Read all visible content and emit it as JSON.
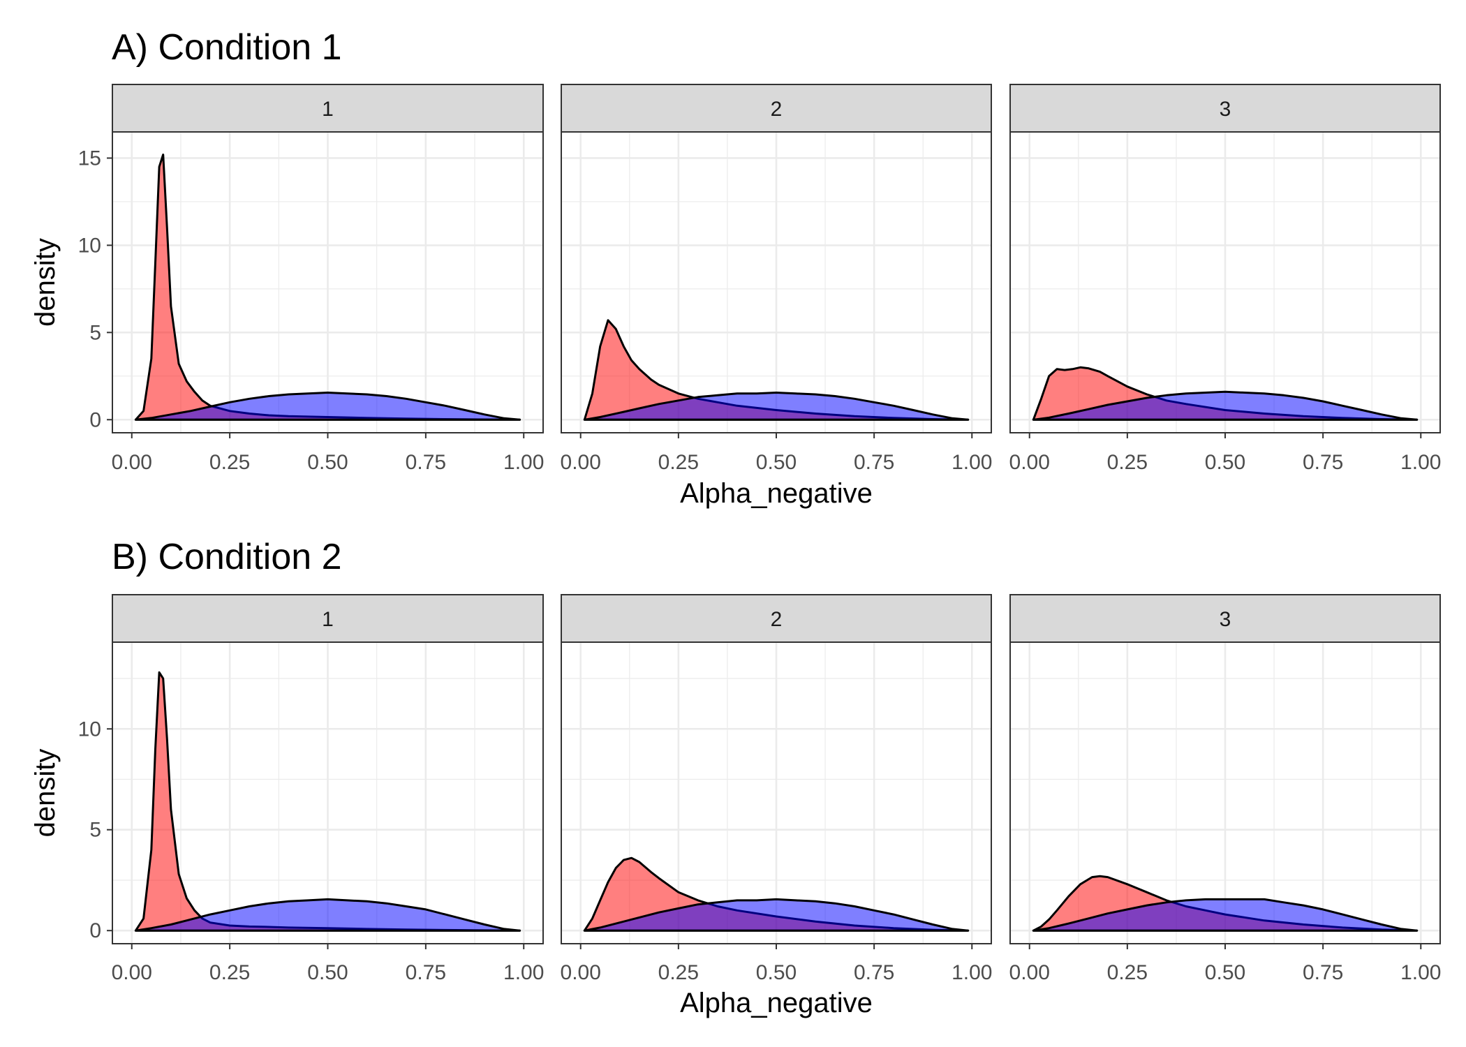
{
  "colors": {
    "red_fill": "#ff0000",
    "blue_fill": "#0000ff",
    "fill_opacity": 0.5,
    "outline": "#000000",
    "strip_bg": "#d9d9d9",
    "grid": "#ebebeb",
    "panel_border": "#333333"
  },
  "chart_data": [
    {
      "type": "area",
      "title": "A) Condition 1",
      "xlabel": "Alpha_negative",
      "ylabel": "density",
      "xlim": [
        0,
        1
      ],
      "ylim": [
        -0.75,
        16.5
      ],
      "x_ticks": [
        0,
        0.25,
        0.5,
        0.75,
        1
      ],
      "x_tick_labels": [
        "0.00",
        "0.25",
        "0.50",
        "0.75",
        "1.00"
      ],
      "y_ticks": [
        0,
        5,
        10,
        15
      ],
      "y_tick_labels": [
        "0",
        "5",
        "10",
        "15"
      ],
      "grid": true,
      "facets": [
        {
          "label": "1",
          "series": [
            {
              "color": "#ff0000",
              "x": [
                0.01,
                0.03,
                0.05,
                0.06,
                0.07,
                0.08,
                0.09,
                0.1,
                0.12,
                0.14,
                0.16,
                0.18,
                0.2,
                0.25,
                0.3,
                0.35,
                0.4,
                0.5,
                0.6,
                0.7,
                0.8,
                0.9,
                0.99
              ],
              "y": [
                0,
                0.5,
                3.5,
                9,
                14.5,
                15.2,
                11,
                6.5,
                3.2,
                2.2,
                1.6,
                1.1,
                0.8,
                0.5,
                0.35,
                0.25,
                0.2,
                0.15,
                0.1,
                0.06,
                0.03,
                0.01,
                0
              ]
            },
            {
              "color": "#0000ff",
              "x": [
                0.01,
                0.05,
                0.1,
                0.15,
                0.2,
                0.25,
                0.3,
                0.35,
                0.4,
                0.45,
                0.5,
                0.55,
                0.6,
                0.65,
                0.7,
                0.75,
                0.8,
                0.85,
                0.9,
                0.95,
                0.99
              ],
              "y": [
                0,
                0.1,
                0.3,
                0.5,
                0.75,
                1.0,
                1.2,
                1.35,
                1.45,
                1.5,
                1.55,
                1.5,
                1.45,
                1.35,
                1.2,
                1.0,
                0.8,
                0.55,
                0.3,
                0.08,
                0
              ]
            }
          ]
        },
        {
          "label": "2",
          "series": [
            {
              "color": "#ff0000",
              "x": [
                0.01,
                0.03,
                0.05,
                0.07,
                0.09,
                0.11,
                0.13,
                0.15,
                0.18,
                0.2,
                0.25,
                0.3,
                0.35,
                0.4,
                0.5,
                0.6,
                0.7,
                0.8,
                0.9,
                0.99
              ],
              "y": [
                0,
                1.5,
                4.2,
                5.7,
                5.2,
                4.2,
                3.4,
                2.9,
                2.3,
                2.0,
                1.5,
                1.2,
                1.0,
                0.8,
                0.55,
                0.35,
                0.2,
                0.1,
                0.03,
                0
              ]
            },
            {
              "color": "#0000ff",
              "x": [
                0.01,
                0.05,
                0.1,
                0.15,
                0.2,
                0.25,
                0.3,
                0.35,
                0.4,
                0.45,
                0.5,
                0.55,
                0.6,
                0.65,
                0.7,
                0.75,
                0.8,
                0.85,
                0.9,
                0.95,
                0.99
              ],
              "y": [
                0,
                0.15,
                0.4,
                0.65,
                0.9,
                1.1,
                1.3,
                1.4,
                1.5,
                1.5,
                1.55,
                1.5,
                1.45,
                1.35,
                1.2,
                1.0,
                0.8,
                0.55,
                0.3,
                0.08,
                0
              ]
            }
          ]
        },
        {
          "label": "3",
          "series": [
            {
              "color": "#ff0000",
              "x": [
                0.01,
                0.03,
                0.05,
                0.07,
                0.09,
                0.11,
                0.13,
                0.15,
                0.18,
                0.2,
                0.25,
                0.3,
                0.35,
                0.4,
                0.5,
                0.6,
                0.7,
                0.8,
                0.9,
                0.99
              ],
              "y": [
                0,
                1.2,
                2.5,
                2.9,
                2.85,
                2.9,
                3.0,
                2.95,
                2.75,
                2.5,
                1.9,
                1.45,
                1.1,
                0.9,
                0.55,
                0.35,
                0.2,
                0.1,
                0.03,
                0
              ]
            },
            {
              "color": "#0000ff",
              "x": [
                0.01,
                0.05,
                0.1,
                0.15,
                0.2,
                0.25,
                0.3,
                0.35,
                0.4,
                0.45,
                0.5,
                0.55,
                0.6,
                0.65,
                0.7,
                0.75,
                0.8,
                0.85,
                0.9,
                0.95,
                0.99
              ],
              "y": [
                0,
                0.12,
                0.35,
                0.6,
                0.85,
                1.05,
                1.25,
                1.4,
                1.5,
                1.55,
                1.6,
                1.55,
                1.5,
                1.4,
                1.25,
                1.05,
                0.8,
                0.55,
                0.3,
                0.08,
                0
              ]
            }
          ]
        }
      ]
    },
    {
      "type": "area",
      "title": "B) Condition 2",
      "xlabel": "Alpha_negative",
      "ylabel": "density",
      "xlim": [
        0,
        1
      ],
      "ylim": [
        -0.65,
        14.3
      ],
      "x_ticks": [
        0,
        0.25,
        0.5,
        0.75,
        1
      ],
      "x_tick_labels": [
        "0.00",
        "0.25",
        "0.50",
        "0.75",
        "1.00"
      ],
      "y_ticks": [
        0,
        5,
        10
      ],
      "y_tick_labels": [
        "0",
        "5",
        "10"
      ],
      "grid": true,
      "facets": [
        {
          "label": "1",
          "series": [
            {
              "color": "#ff0000",
              "x": [
                0.01,
                0.03,
                0.05,
                0.06,
                0.07,
                0.08,
                0.09,
                0.1,
                0.12,
                0.14,
                0.16,
                0.18,
                0.2,
                0.25,
                0.3,
                0.35,
                0.4,
                0.5,
                0.6,
                0.7,
                0.8,
                0.9,
                0.99
              ],
              "y": [
                0,
                0.6,
                4,
                9,
                12.8,
                12.5,
                9.5,
                6,
                2.8,
                1.6,
                1.0,
                0.6,
                0.4,
                0.25,
                0.2,
                0.18,
                0.15,
                0.12,
                0.08,
                0.05,
                0.03,
                0.01,
                0
              ]
            },
            {
              "color": "#0000ff",
              "x": [
                0.01,
                0.05,
                0.1,
                0.15,
                0.2,
                0.25,
                0.3,
                0.35,
                0.4,
                0.45,
                0.5,
                0.55,
                0.6,
                0.65,
                0.7,
                0.75,
                0.8,
                0.85,
                0.9,
                0.95,
                0.99
              ],
              "y": [
                0,
                0.12,
                0.3,
                0.55,
                0.8,
                1.0,
                1.2,
                1.35,
                1.45,
                1.5,
                1.55,
                1.5,
                1.45,
                1.35,
                1.2,
                1.05,
                0.8,
                0.55,
                0.3,
                0.08,
                0
              ]
            }
          ]
        },
        {
          "label": "2",
          "series": [
            {
              "color": "#ff0000",
              "x": [
                0.01,
                0.03,
                0.05,
                0.07,
                0.09,
                0.11,
                0.13,
                0.15,
                0.18,
                0.2,
                0.25,
                0.3,
                0.35,
                0.4,
                0.5,
                0.6,
                0.7,
                0.8,
                0.9,
                0.99
              ],
              "y": [
                0,
                0.6,
                1.5,
                2.4,
                3.1,
                3.5,
                3.6,
                3.4,
                2.9,
                2.6,
                1.9,
                1.5,
                1.2,
                1.0,
                0.7,
                0.45,
                0.25,
                0.12,
                0.04,
                0
              ]
            },
            {
              "color": "#0000ff",
              "x": [
                0.01,
                0.05,
                0.1,
                0.15,
                0.2,
                0.25,
                0.3,
                0.35,
                0.4,
                0.45,
                0.5,
                0.55,
                0.6,
                0.65,
                0.7,
                0.75,
                0.8,
                0.85,
                0.9,
                0.95,
                0.99
              ],
              "y": [
                0,
                0.15,
                0.4,
                0.65,
                0.9,
                1.1,
                1.3,
                1.4,
                1.5,
                1.5,
                1.55,
                1.5,
                1.45,
                1.35,
                1.2,
                1.0,
                0.8,
                0.55,
                0.3,
                0.08,
                0
              ]
            }
          ]
        },
        {
          "label": "3",
          "series": [
            {
              "color": "#ff0000",
              "x": [
                0.01,
                0.03,
                0.05,
                0.07,
                0.1,
                0.13,
                0.16,
                0.18,
                0.2,
                0.25,
                0.3,
                0.35,
                0.4,
                0.45,
                0.5,
                0.6,
                0.7,
                0.8,
                0.9,
                0.99
              ],
              "y": [
                0,
                0.2,
                0.55,
                1.0,
                1.7,
                2.3,
                2.65,
                2.7,
                2.65,
                2.3,
                1.9,
                1.5,
                1.2,
                1.0,
                0.8,
                0.5,
                0.3,
                0.15,
                0.05,
                0
              ]
            },
            {
              "color": "#0000ff",
              "x": [
                0.01,
                0.05,
                0.1,
                0.15,
                0.2,
                0.25,
                0.3,
                0.35,
                0.4,
                0.45,
                0.5,
                0.55,
                0.6,
                0.65,
                0.7,
                0.75,
                0.8,
                0.85,
                0.9,
                0.95,
                0.99
              ],
              "y": [
                0,
                0.12,
                0.35,
                0.6,
                0.85,
                1.05,
                1.25,
                1.4,
                1.5,
                1.55,
                1.55,
                1.55,
                1.55,
                1.4,
                1.25,
                1.05,
                0.8,
                0.55,
                0.3,
                0.08,
                0
              ]
            }
          ]
        }
      ]
    }
  ]
}
